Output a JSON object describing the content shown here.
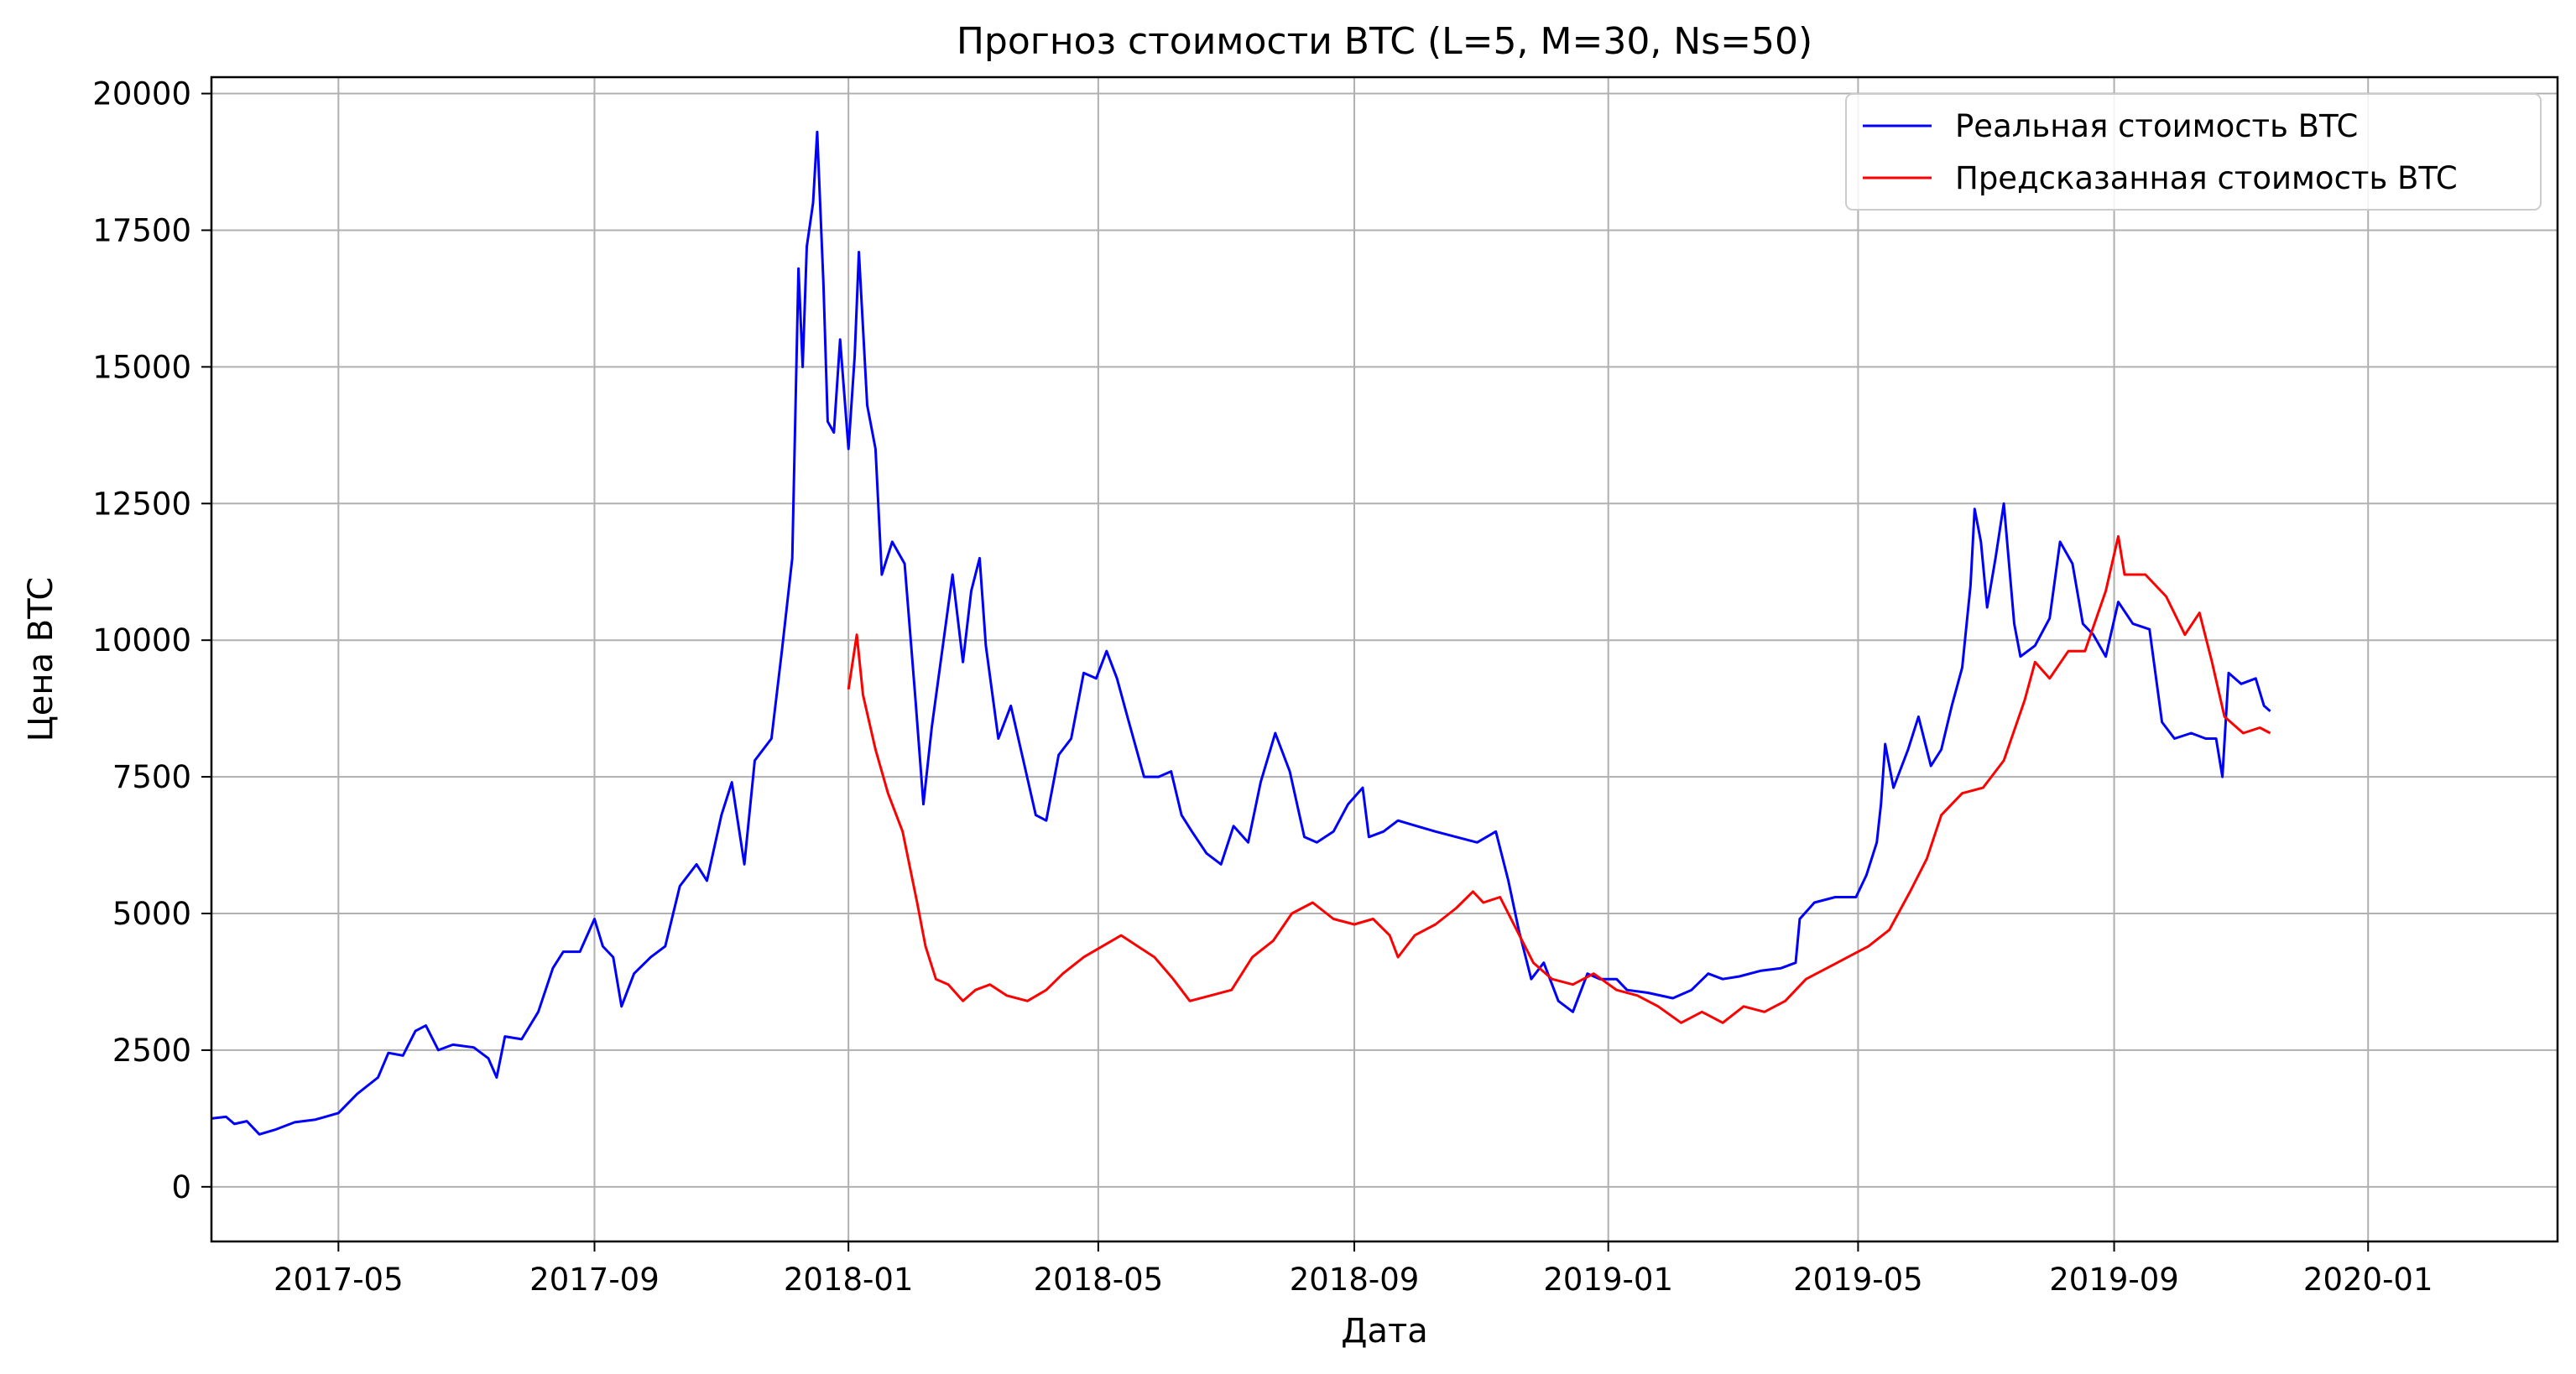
{
  "chart_data": {
    "type": "line",
    "title": "Прогноз стоимости BTC (L=5, M=30, Ns=50)",
    "xlabel": "Дата",
    "ylabel": "Цена BTC",
    "xlim": [
      "2017-03-01",
      "2020-04-01"
    ],
    "ylim": [
      -1000,
      20300
    ],
    "grid": true,
    "legend_position": "top-right",
    "x_ticks": [
      "2017-05",
      "2017-09",
      "2018-01",
      "2018-05",
      "2018-09",
      "2019-01",
      "2019-05",
      "2019-09",
      "2020-01"
    ],
    "y_ticks": [
      0,
      2500,
      5000,
      7500,
      10000,
      12500,
      15000,
      17500,
      20000
    ],
    "series": [
      {
        "name": "Реальная стоимость BTC",
        "color": "#0000ff",
        "points": [
          [
            "2017-03-01",
            1250
          ],
          [
            "2017-03-08",
            1280
          ],
          [
            "2017-03-12",
            1150
          ],
          [
            "2017-03-18",
            1200
          ],
          [
            "2017-03-24",
            960
          ],
          [
            "2017-04-01",
            1050
          ],
          [
            "2017-04-10",
            1180
          ],
          [
            "2017-04-20",
            1230
          ],
          [
            "2017-05-01",
            1350
          ],
          [
            "2017-05-10",
            1700
          ],
          [
            "2017-05-20",
            2000
          ],
          [
            "2017-05-25",
            2450
          ],
          [
            "2017-06-01",
            2400
          ],
          [
            "2017-06-07",
            2850
          ],
          [
            "2017-06-12",
            2950
          ],
          [
            "2017-06-18",
            2500
          ],
          [
            "2017-06-25",
            2600
          ],
          [
            "2017-07-05",
            2550
          ],
          [
            "2017-07-12",
            2350
          ],
          [
            "2017-07-16",
            2000
          ],
          [
            "2017-07-20",
            2750
          ],
          [
            "2017-07-28",
            2700
          ],
          [
            "2017-08-05",
            3200
          ],
          [
            "2017-08-12",
            4000
          ],
          [
            "2017-08-17",
            4300
          ],
          [
            "2017-08-25",
            4300
          ],
          [
            "2017-09-01",
            4900
          ],
          [
            "2017-09-05",
            4400
          ],
          [
            "2017-09-10",
            4200
          ],
          [
            "2017-09-14",
            3300
          ],
          [
            "2017-09-20",
            3900
          ],
          [
            "2017-09-28",
            4200
          ],
          [
            "2017-10-05",
            4400
          ],
          [
            "2017-10-12",
            5500
          ],
          [
            "2017-10-20",
            5900
          ],
          [
            "2017-10-25",
            5600
          ],
          [
            "2017-11-01",
            6800
          ],
          [
            "2017-11-06",
            7400
          ],
          [
            "2017-11-12",
            5900
          ],
          [
            "2017-11-17",
            7800
          ],
          [
            "2017-11-25",
            8200
          ],
          [
            "2017-11-30",
            9800
          ],
          [
            "2017-12-05",
            11500
          ],
          [
            "2017-12-08",
            16800
          ],
          [
            "2017-12-10",
            15000
          ],
          [
            "2017-12-12",
            17200
          ],
          [
            "2017-12-15",
            18000
          ],
          [
            "2017-12-17",
            19300
          ],
          [
            "2017-12-20",
            16500
          ],
          [
            "2017-12-22",
            14000
          ],
          [
            "2017-12-25",
            13800
          ],
          [
            "2017-12-28",
            15500
          ],
          [
            "2018-01-01",
            13500
          ],
          [
            "2018-01-04",
            15200
          ],
          [
            "2018-01-06",
            17100
          ],
          [
            "2018-01-10",
            14300
          ],
          [
            "2018-01-14",
            13500
          ],
          [
            "2018-01-17",
            11200
          ],
          [
            "2018-01-22",
            11800
          ],
          [
            "2018-01-28",
            11400
          ],
          [
            "2018-02-02",
            9000
          ],
          [
            "2018-02-06",
            7000
          ],
          [
            "2018-02-10",
            8400
          ],
          [
            "2018-02-15",
            9800
          ],
          [
            "2018-02-20",
            11200
          ],
          [
            "2018-02-25",
            9600
          ],
          [
            "2018-03-01",
            10900
          ],
          [
            "2018-03-05",
            11500
          ],
          [
            "2018-03-08",
            9900
          ],
          [
            "2018-03-14",
            8200
          ],
          [
            "2018-03-20",
            8800
          ],
          [
            "2018-03-26",
            7800
          ],
          [
            "2018-04-01",
            6800
          ],
          [
            "2018-04-06",
            6700
          ],
          [
            "2018-04-12",
            7900
          ],
          [
            "2018-04-18",
            8200
          ],
          [
            "2018-04-24",
            9400
          ],
          [
            "2018-04-30",
            9300
          ],
          [
            "2018-05-05",
            9800
          ],
          [
            "2018-05-10",
            9300
          ],
          [
            "2018-05-15",
            8600
          ],
          [
            "2018-05-23",
            7500
          ],
          [
            "2018-05-30",
            7500
          ],
          [
            "2018-06-05",
            7600
          ],
          [
            "2018-06-10",
            6800
          ],
          [
            "2018-06-15",
            6500
          ],
          [
            "2018-06-22",
            6100
          ],
          [
            "2018-06-29",
            5900
          ],
          [
            "2018-07-05",
            6600
          ],
          [
            "2018-07-12",
            6300
          ],
          [
            "2018-07-18",
            7400
          ],
          [
            "2018-07-25",
            8300
          ],
          [
            "2018-08-01",
            7600
          ],
          [
            "2018-08-08",
            6400
          ],
          [
            "2018-08-14",
            6300
          ],
          [
            "2018-08-22",
            6500
          ],
          [
            "2018-08-29",
            7000
          ],
          [
            "2018-09-05",
            7300
          ],
          [
            "2018-09-08",
            6400
          ],
          [
            "2018-09-15",
            6500
          ],
          [
            "2018-09-22",
            6700
          ],
          [
            "2018-10-01",
            6600
          ],
          [
            "2018-10-10",
            6500
          ],
          [
            "2018-10-20",
            6400
          ],
          [
            "2018-10-30",
            6300
          ],
          [
            "2018-11-08",
            6500
          ],
          [
            "2018-11-14",
            5600
          ],
          [
            "2018-11-19",
            4700
          ],
          [
            "2018-11-25",
            3800
          ],
          [
            "2018-12-01",
            4100
          ],
          [
            "2018-12-08",
            3400
          ],
          [
            "2018-12-15",
            3200
          ],
          [
            "2018-12-22",
            3900
          ],
          [
            "2018-12-28",
            3800
          ],
          [
            "2019-01-05",
            3800
          ],
          [
            "2019-01-10",
            3600
          ],
          [
            "2019-01-20",
            3550
          ],
          [
            "2019-02-01",
            3450
          ],
          [
            "2019-02-10",
            3600
          ],
          [
            "2019-02-18",
            3900
          ],
          [
            "2019-02-25",
            3800
          ],
          [
            "2019-03-05",
            3850
          ],
          [
            "2019-03-15",
            3950
          ],
          [
            "2019-03-25",
            4000
          ],
          [
            "2019-04-01",
            4100
          ],
          [
            "2019-04-03",
            4900
          ],
          [
            "2019-04-10",
            5200
          ],
          [
            "2019-04-20",
            5300
          ],
          [
            "2019-04-30",
            5300
          ],
          [
            "2019-05-05",
            5700
          ],
          [
            "2019-05-10",
            6300
          ],
          [
            "2019-05-12",
            7000
          ],
          [
            "2019-05-14",
            8100
          ],
          [
            "2019-05-18",
            7300
          ],
          [
            "2019-05-25",
            8000
          ],
          [
            "2019-05-30",
            8600
          ],
          [
            "2019-06-05",
            7700
          ],
          [
            "2019-06-10",
            8000
          ],
          [
            "2019-06-15",
            8800
          ],
          [
            "2019-06-20",
            9500
          ],
          [
            "2019-06-24",
            11000
          ],
          [
            "2019-06-26",
            12400
          ],
          [
            "2019-06-29",
            11800
          ],
          [
            "2019-07-02",
            10600
          ],
          [
            "2019-07-06",
            11500
          ],
          [
            "2019-07-10",
            12500
          ],
          [
            "2019-07-15",
            10300
          ],
          [
            "2019-07-18",
            9700
          ],
          [
            "2019-07-25",
            9900
          ],
          [
            "2019-08-01",
            10400
          ],
          [
            "2019-08-06",
            11800
          ],
          [
            "2019-08-12",
            11400
          ],
          [
            "2019-08-17",
            10300
          ],
          [
            "2019-08-22",
            10100
          ],
          [
            "2019-08-28",
            9700
          ],
          [
            "2019-09-03",
            10700
          ],
          [
            "2019-09-10",
            10300
          ],
          [
            "2019-09-18",
            10200
          ],
          [
            "2019-09-24",
            8500
          ],
          [
            "2019-09-30",
            8200
          ],
          [
            "2019-10-08",
            8300
          ],
          [
            "2019-10-15",
            8200
          ],
          [
            "2019-10-20",
            8200
          ],
          [
            "2019-10-23",
            7500
          ],
          [
            "2019-10-26",
            9400
          ],
          [
            "2019-11-01",
            9200
          ],
          [
            "2019-11-08",
            9300
          ],
          [
            "2019-11-12",
            8800
          ],
          [
            "2019-11-15",
            8700
          ]
        ]
      },
      {
        "name": "Предсказанная стоимость BTC",
        "color": "#ff0000",
        "points": [
          [
            "2018-01-01",
            9100
          ],
          [
            "2018-01-05",
            10100
          ],
          [
            "2018-01-08",
            9000
          ],
          [
            "2018-01-14",
            8000
          ],
          [
            "2018-01-20",
            7200
          ],
          [
            "2018-01-27",
            6500
          ],
          [
            "2018-02-03",
            5200
          ],
          [
            "2018-02-07",
            4400
          ],
          [
            "2018-02-12",
            3800
          ],
          [
            "2018-02-18",
            3700
          ],
          [
            "2018-02-25",
            3400
          ],
          [
            "2018-03-03",
            3600
          ],
          [
            "2018-03-10",
            3700
          ],
          [
            "2018-03-18",
            3500
          ],
          [
            "2018-03-28",
            3400
          ],
          [
            "2018-04-06",
            3600
          ],
          [
            "2018-04-14",
            3900
          ],
          [
            "2018-04-24",
            4200
          ],
          [
            "2018-05-03",
            4400
          ],
          [
            "2018-05-12",
            4600
          ],
          [
            "2018-05-20",
            4400
          ],
          [
            "2018-05-28",
            4200
          ],
          [
            "2018-06-06",
            3800
          ],
          [
            "2018-06-14",
            3400
          ],
          [
            "2018-06-24",
            3500
          ],
          [
            "2018-07-04",
            3600
          ],
          [
            "2018-07-14",
            4200
          ],
          [
            "2018-07-24",
            4500
          ],
          [
            "2018-08-02",
            5000
          ],
          [
            "2018-08-12",
            5200
          ],
          [
            "2018-08-22",
            4900
          ],
          [
            "2018-09-01",
            4800
          ],
          [
            "2018-09-10",
            4900
          ],
          [
            "2018-09-18",
            4600
          ],
          [
            "2018-09-22",
            4200
          ],
          [
            "2018-09-30",
            4600
          ],
          [
            "2018-10-10",
            4800
          ],
          [
            "2018-10-20",
            5100
          ],
          [
            "2018-10-28",
            5400
          ],
          [
            "2018-11-02",
            5200
          ],
          [
            "2018-11-10",
            5300
          ],
          [
            "2018-11-18",
            4700
          ],
          [
            "2018-11-26",
            4100
          ],
          [
            "2018-12-05",
            3800
          ],
          [
            "2018-12-15",
            3700
          ],
          [
            "2018-12-25",
            3900
          ],
          [
            "2019-01-05",
            3600
          ],
          [
            "2019-01-15",
            3500
          ],
          [
            "2019-01-25",
            3300
          ],
          [
            "2019-02-05",
            3000
          ],
          [
            "2019-02-15",
            3200
          ],
          [
            "2019-02-25",
            3000
          ],
          [
            "2019-03-07",
            3300
          ],
          [
            "2019-03-17",
            3200
          ],
          [
            "2019-03-27",
            3400
          ],
          [
            "2019-04-06",
            3800
          ],
          [
            "2019-04-16",
            4000
          ],
          [
            "2019-04-26",
            4200
          ],
          [
            "2019-05-06",
            4400
          ],
          [
            "2019-05-16",
            4700
          ],
          [
            "2019-05-26",
            5400
          ],
          [
            "2019-06-03",
            6000
          ],
          [
            "2019-06-10",
            6800
          ],
          [
            "2019-06-20",
            7200
          ],
          [
            "2019-06-30",
            7300
          ],
          [
            "2019-07-10",
            7800
          ],
          [
            "2019-07-20",
            8900
          ],
          [
            "2019-07-25",
            9600
          ],
          [
            "2019-08-01",
            9300
          ],
          [
            "2019-08-10",
            9800
          ],
          [
            "2019-08-18",
            9800
          ],
          [
            "2019-08-28",
            10900
          ],
          [
            "2019-09-03",
            11900
          ],
          [
            "2019-09-06",
            11200
          ],
          [
            "2019-09-16",
            11200
          ],
          [
            "2019-09-26",
            10800
          ],
          [
            "2019-10-05",
            10100
          ],
          [
            "2019-10-12",
            10500
          ],
          [
            "2019-10-18",
            9600
          ],
          [
            "2019-10-24",
            8600
          ],
          [
            "2019-11-02",
            8300
          ],
          [
            "2019-11-10",
            8400
          ],
          [
            "2019-11-15",
            8300
          ]
        ]
      }
    ]
  }
}
